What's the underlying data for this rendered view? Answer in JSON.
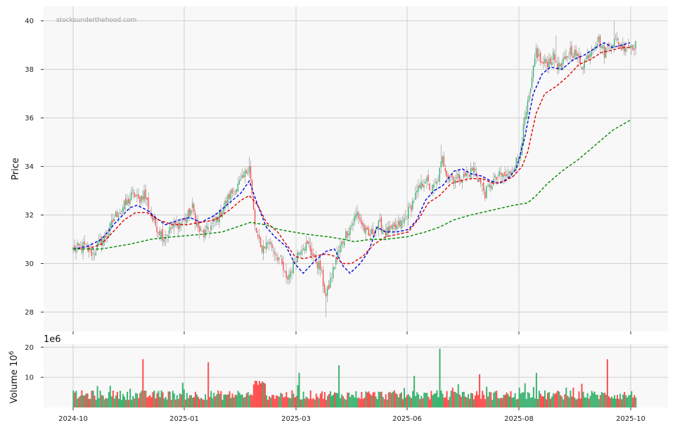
{
  "watermark": "stocksunderthehood.com",
  "chart_data": {
    "type": "candlestick",
    "x_tick_labels": [
      "2024-10",
      "2025-01",
      "2025-03",
      "2025-06",
      "2025-08",
      "2025-10"
    ],
    "price_panel": {
      "ylabel": "Price",
      "ylim": [
        27.2,
        40.6
      ],
      "y_ticks": [
        28,
        30,
        32,
        34,
        36,
        38,
        40
      ],
      "grid": true,
      "series": [
        {
          "key": "blue_ma",
          "color": "#0000dd",
          "style": "dashed",
          "points": [
            [
              0,
              30.6
            ],
            [
              10,
              30.7
            ],
            [
              20,
              31.0
            ],
            [
              30,
              31.7
            ],
            [
              40,
              32.3
            ],
            [
              45,
              32.4
            ],
            [
              52,
              32.2
            ],
            [
              58,
              31.9
            ],
            [
              65,
              31.6
            ],
            [
              75,
              31.8
            ],
            [
              82,
              31.9
            ],
            [
              90,
              31.7
            ],
            [
              100,
              32.0
            ],
            [
              110,
              32.5
            ],
            [
              118,
              32.9
            ],
            [
              124,
              33.4
            ],
            [
              130,
              32.4
            ],
            [
              136,
              31.5
            ],
            [
              142,
              31.1
            ],
            [
              150,
              30.7
            ],
            [
              156,
              30.0
            ],
            [
              162,
              29.6
            ],
            [
              170,
              30.1
            ],
            [
              178,
              30.5
            ],
            [
              184,
              30.6
            ],
            [
              190,
              29.9
            ],
            [
              195,
              29.6
            ],
            [
              202,
              30.0
            ],
            [
              208,
              30.5
            ],
            [
              214,
              31.5
            ],
            [
              220,
              31.3
            ],
            [
              228,
              31.3
            ],
            [
              236,
              31.4
            ],
            [
              242,
              31.8
            ],
            [
              248,
              32.6
            ],
            [
              254,
              33.0
            ],
            [
              260,
              33.2
            ],
            [
              268,
              33.8
            ],
            [
              274,
              33.9
            ],
            [
              280,
              33.7
            ],
            [
              288,
              33.6
            ],
            [
              294,
              33.4
            ],
            [
              300,
              33.3
            ],
            [
              306,
              33.5
            ],
            [
              312,
              33.9
            ],
            [
              318,
              35.2
            ],
            [
              324,
              37.0
            ],
            [
              330,
              37.8
            ],
            [
              336,
              38.1
            ],
            [
              344,
              38.0
            ],
            [
              352,
              38.4
            ],
            [
              360,
              38.6
            ],
            [
              368,
              38.9
            ],
            [
              374,
              39.1
            ],
            [
              380,
              38.9
            ],
            [
              386,
              39.0
            ],
            [
              392,
              39.1
            ]
          ]
        },
        {
          "key": "red_ma",
          "color": "#dd0000",
          "style": "dashed",
          "points": [
            [
              0,
              30.6
            ],
            [
              10,
              30.6
            ],
            [
              20,
              30.8
            ],
            [
              28,
              31.3
            ],
            [
              36,
              31.8
            ],
            [
              44,
              32.1
            ],
            [
              52,
              32.1
            ],
            [
              60,
              31.8
            ],
            [
              70,
              31.6
            ],
            [
              80,
              31.6
            ],
            [
              90,
              31.7
            ],
            [
              100,
              31.8
            ],
            [
              110,
              32.2
            ],
            [
              118,
              32.6
            ],
            [
              124,
              32.8
            ],
            [
              130,
              32.4
            ],
            [
              136,
              31.7
            ],
            [
              144,
              31.3
            ],
            [
              150,
              30.8
            ],
            [
              156,
              30.3
            ],
            [
              162,
              30.2
            ],
            [
              170,
              30.3
            ],
            [
              178,
              30.4
            ],
            [
              184,
              30.3
            ],
            [
              190,
              30.0
            ],
            [
              196,
              30.0
            ],
            [
              204,
              30.3
            ],
            [
              212,
              30.8
            ],
            [
              220,
              31.1
            ],
            [
              228,
              31.2
            ],
            [
              236,
              31.3
            ],
            [
              244,
              31.9
            ],
            [
              250,
              32.5
            ],
            [
              258,
              32.8
            ],
            [
              266,
              33.3
            ],
            [
              272,
              33.4
            ],
            [
              280,
              33.5
            ],
            [
              288,
              33.5
            ],
            [
              296,
              33.3
            ],
            [
              304,
              33.4
            ],
            [
              310,
              33.6
            ],
            [
              316,
              34.0
            ],
            [
              320,
              34.6
            ],
            [
              326,
              36.2
            ],
            [
              332,
              37.0
            ],
            [
              340,
              37.3
            ],
            [
              348,
              37.7
            ],
            [
              356,
              38.2
            ],
            [
              364,
              38.4
            ],
            [
              372,
              38.7
            ],
            [
              380,
              38.8
            ],
            [
              386,
              38.9
            ],
            [
              392,
              38.9
            ]
          ]
        },
        {
          "key": "green_ma",
          "color": "#008800",
          "style": "dashed",
          "points": [
            [
              0,
              30.6
            ],
            [
              20,
              30.6
            ],
            [
              40,
              30.8
            ],
            [
              55,
              31.0
            ],
            [
              70,
              31.1
            ],
            [
              90,
              31.2
            ],
            [
              105,
              31.3
            ],
            [
              115,
              31.5
            ],
            [
              125,
              31.7
            ],
            [
              135,
              31.6
            ],
            [
              145,
              31.4
            ],
            [
              155,
              31.3
            ],
            [
              165,
              31.2
            ],
            [
              180,
              31.1
            ],
            [
              190,
              31.0
            ],
            [
              198,
              30.9
            ],
            [
              210,
              31.0
            ],
            [
              220,
              31.0
            ],
            [
              235,
              31.1
            ],
            [
              248,
              31.3
            ],
            [
              258,
              31.5
            ],
            [
              268,
              31.8
            ],
            [
              280,
              32.0
            ],
            [
              295,
              32.2
            ],
            [
              310,
              32.4
            ],
            [
              320,
              32.5
            ],
            [
              326,
              32.8
            ],
            [
              334,
              33.3
            ],
            [
              344,
              33.8
            ],
            [
              356,
              34.3
            ],
            [
              368,
              34.9
            ],
            [
              380,
              35.5
            ],
            [
              392,
              35.9
            ]
          ]
        }
      ]
    },
    "volume_panel": {
      "ylabel": "Volume  10$^{6}$",
      "ylabel_text": "Volume  10",
      "ylabel_exponent": "6",
      "offset_text": "1e6",
      "ylim": [
        0,
        21
      ],
      "y_ticks": [
        10,
        20
      ],
      "grid": true,
      "spikes": [
        {
          "i": 49,
          "v": 16.0,
          "color": "red"
        },
        {
          "i": 95,
          "v": 15.0,
          "color": "red"
        },
        {
          "i": 159,
          "v": 11.5,
          "color": "green"
        },
        {
          "i": 187,
          "v": 14.0,
          "color": "green"
        },
        {
          "i": 240,
          "v": 10.5,
          "color": "green"
        },
        {
          "i": 258,
          "v": 19.5,
          "color": "green"
        },
        {
          "i": 286,
          "v": 11.0,
          "color": "red"
        },
        {
          "i": 326,
          "v": 11.5,
          "color": "green"
        },
        {
          "i": 376,
          "v": 16.0,
          "color": "red"
        }
      ]
    },
    "candles": {
      "count": 397,
      "up_color": "#3cb371",
      "down_color": "#ff4d4d",
      "close_anchors": [
        [
          0,
          30.6
        ],
        [
          8,
          30.7
        ],
        [
          14,
          30.4
        ],
        [
          18,
          30.8
        ],
        [
          24,
          31.2
        ],
        [
          30,
          32.0
        ],
        [
          38,
          32.5
        ],
        [
          42,
          32.9
        ],
        [
          46,
          32.6
        ],
        [
          50,
          32.9
        ],
        [
          56,
          31.8
        ],
        [
          60,
          31.4
        ],
        [
          64,
          31.1
        ],
        [
          70,
          31.5
        ],
        [
          76,
          31.7
        ],
        [
          80,
          31.9
        ],
        [
          84,
          32.3
        ],
        [
          88,
          31.4
        ],
        [
          92,
          31.2
        ],
        [
          98,
          31.6
        ],
        [
          104,
          32.1
        ],
        [
          110,
          32.8
        ],
        [
          116,
          33.2
        ],
        [
          120,
          33.5
        ],
        [
          124,
          34.1
        ],
        [
          128,
          31.5
        ],
        [
          132,
          30.6
        ],
        [
          138,
          30.9
        ],
        [
          142,
          30.5
        ],
        [
          146,
          30.1
        ],
        [
          150,
          29.3
        ],
        [
          154,
          29.8
        ],
        [
          158,
          30.4
        ],
        [
          162,
          30.8
        ],
        [
          166,
          30.7
        ],
        [
          170,
          30.2
        ],
        [
          174,
          29.8
        ],
        [
          178,
          28.6
        ],
        [
          182,
          29.5
        ],
        [
          186,
          30.4
        ],
        [
          192,
          31.2
        ],
        [
          196,
          31.6
        ],
        [
          200,
          32.1
        ],
        [
          204,
          31.5
        ],
        [
          208,
          31.1
        ],
        [
          212,
          31.4
        ],
        [
          216,
          31.6
        ],
        [
          220,
          31.3
        ],
        [
          226,
          31.4
        ],
        [
          232,
          31.7
        ],
        [
          238,
          32.4
        ],
        [
          242,
          32.9
        ],
        [
          248,
          33.5
        ],
        [
          252,
          33.0
        ],
        [
          256,
          33.3
        ],
        [
          260,
          34.3
        ],
        [
          264,
          33.6
        ],
        [
          270,
          33.5
        ],
        [
          276,
          33.6
        ],
        [
          282,
          33.9
        ],
        [
          286,
          33.4
        ],
        [
          290,
          32.9
        ],
        [
          296,
          33.4
        ],
        [
          300,
          33.6
        ],
        [
          306,
          33.6
        ],
        [
          310,
          34.0
        ],
        [
          314,
          34.4
        ],
        [
          318,
          35.9
        ],
        [
          322,
          37.1
        ],
        [
          326,
          38.8
        ],
        [
          330,
          38.2
        ],
        [
          334,
          38.3
        ],
        [
          338,
          38.5
        ],
        [
          342,
          38.1
        ],
        [
          346,
          38.3
        ],
        [
          350,
          38.8
        ],
        [
          354,
          38.6
        ],
        [
          358,
          38.2
        ],
        [
          362,
          38.5
        ],
        [
          366,
          39.0
        ],
        [
          370,
          39.2
        ],
        [
          374,
          38.7
        ],
        [
          378,
          39.1
        ],
        [
          382,
          39.2
        ],
        [
          386,
          38.9
        ],
        [
          390,
          39.0
        ],
        [
          396,
          39.0
        ]
      ],
      "note_wick_extremes": [
        [
          124,
          34.4
        ],
        [
          178,
          27.8
        ],
        [
          259,
          34.9
        ],
        [
          340,
          39.4
        ],
        [
          381,
          40.0
        ]
      ]
    }
  }
}
